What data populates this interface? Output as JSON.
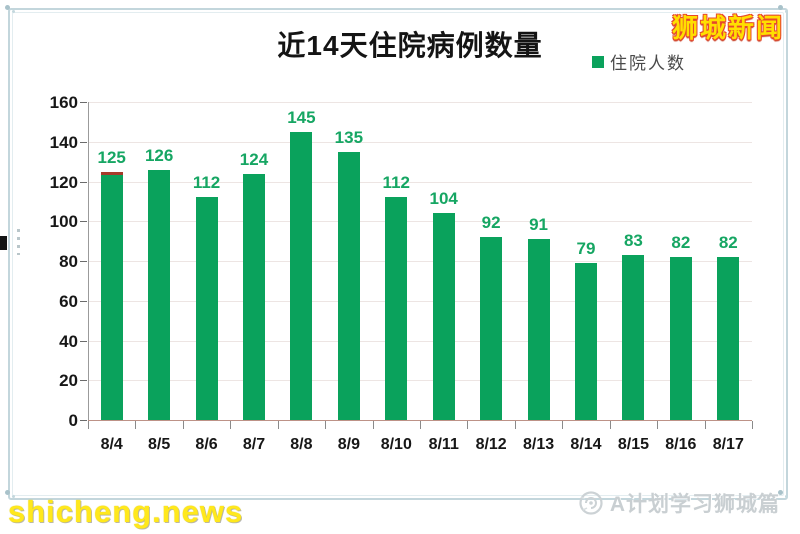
{
  "header": {
    "logo_text": "狮城新闻"
  },
  "chart_data": {
    "type": "bar",
    "title": "近14天住院病例数量",
    "series_name": "住院人数",
    "categories": [
      "8/4",
      "8/5",
      "8/6",
      "8/7",
      "8/8",
      "8/9",
      "8/10",
      "8/11",
      "8/12",
      "8/13",
      "8/14",
      "8/15",
      "8/16",
      "8/17"
    ],
    "values": [
      125,
      126,
      112,
      124,
      145,
      135,
      112,
      104,
      92,
      91,
      79,
      83,
      82,
      82
    ],
    "xlabel": "",
    "ylabel": "",
    "ylim": [
      0,
      160
    ],
    "yticks": [
      0,
      20,
      40,
      60,
      80,
      100,
      120,
      140,
      160
    ],
    "grid": true,
    "legend_position": "top-right",
    "colors": {
      "bar": "#0aa25c",
      "value_label": "#16a663",
      "first_bar_top_stripe": "#a63a2a",
      "gridline": "#ede5e3",
      "y_axis": "#9b9b9b",
      "x_axis_line": "#bd9287"
    }
  },
  "watermarks": {
    "bottom_left": "shicheng.news",
    "bottom_right": "A计划学习狮城篇"
  }
}
